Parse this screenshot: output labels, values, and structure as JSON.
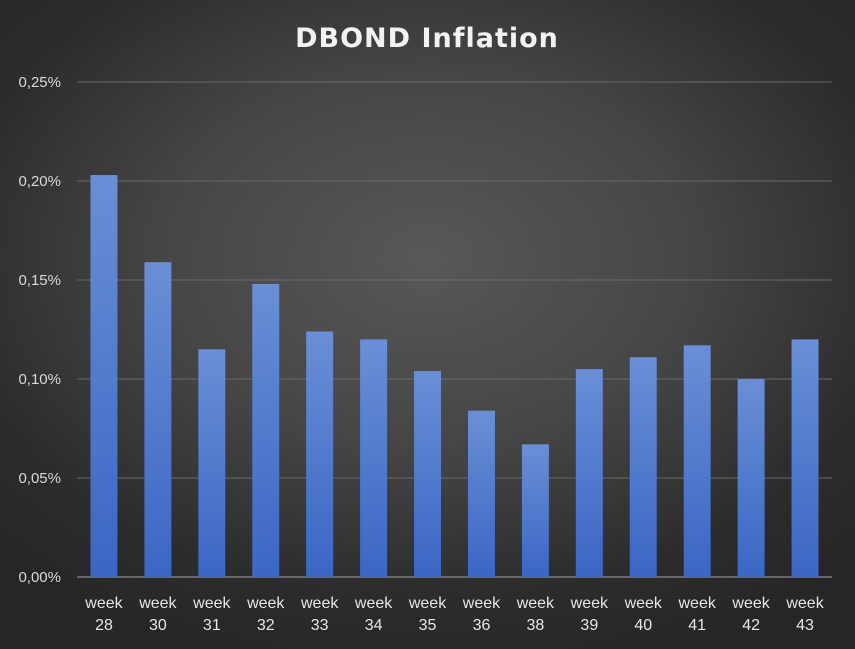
{
  "chart_data": {
    "type": "bar",
    "title": "DBOND Inflation",
    "xlabel": "",
    "ylabel": "",
    "categories": [
      [
        "week",
        "28"
      ],
      [
        "week",
        "30"
      ],
      [
        "week",
        "31"
      ],
      [
        "week",
        "32"
      ],
      [
        "week",
        "33"
      ],
      [
        "week",
        "34"
      ],
      [
        "week",
        "35"
      ],
      [
        "week",
        "36"
      ],
      [
        "week",
        "38"
      ],
      [
        "week",
        "39"
      ],
      [
        "week",
        "40"
      ],
      [
        "week",
        "41"
      ],
      [
        "week",
        "42"
      ],
      [
        "week",
        "43"
      ]
    ],
    "series": [
      {
        "values": [
          0.203,
          0.159,
          0.115,
          0.148,
          0.124,
          0.12,
          0.104,
          0.084,
          0.067,
          0.105,
          0.111,
          0.117,
          0.1,
          0.12
        ],
        "color": "#4472c4"
      }
    ],
    "ylim": [
      0,
      0.25
    ],
    "yticks": [
      0,
      0.05,
      0.1,
      0.15,
      0.2,
      0.25
    ],
    "ytick_labels": [
      "0,00%",
      "0,05%",
      "0,10%",
      "0,15%",
      "0,20%",
      "0,25%"
    ],
    "grid": true,
    "legend": "none"
  }
}
